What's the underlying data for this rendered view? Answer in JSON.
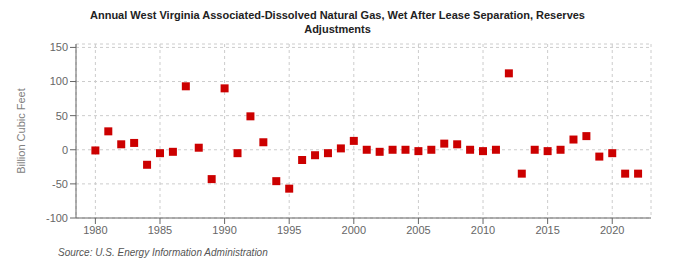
{
  "chart_data": {
    "type": "scatter",
    "title": "Annual West Virginia Associated-Dissolved Natural Gas, Wet After Lease Separation, Reserves\nAdjustments",
    "ylabel": "Billion Cubic Feet",
    "annotations": [
      "Source: U.S. Energy Information Administration"
    ],
    "x": [
      1980,
      1981,
      1982,
      1983,
      1984,
      1985,
      1986,
      1987,
      1988,
      1989,
      1990,
      1991,
      1992,
      1993,
      1994,
      1995,
      1996,
      1997,
      1998,
      1999,
      2000,
      2001,
      2002,
      2003,
      2004,
      2005,
      2006,
      2007,
      2008,
      2009,
      2010,
      2011,
      2012,
      2013,
      2014,
      2015,
      2016,
      2017,
      2018,
      2019,
      2020,
      2021,
      2022
    ],
    "values": [
      -1,
      27,
      8,
      10,
      -22,
      -5,
      -3,
      93,
      3,
      -43,
      90,
      -5,
      49,
      11,
      -46,
      -57,
      -15,
      -8,
      -5,
      2,
      13,
      0,
      -3,
      0,
      0,
      -2,
      0,
      9,
      8,
      0,
      -2,
      0,
      112,
      -35,
      0,
      -2,
      0,
      15,
      20,
      -10,
      -5,
      -35,
      -35
    ],
    "color": "#cc0000",
    "marker": "square",
    "xlim": [
      1978.5,
      2023
    ],
    "ylim": [
      -100,
      155
    ],
    "xticks": [
      1980,
      1985,
      1990,
      1995,
      2000,
      2005,
      2010,
      2015,
      2020
    ],
    "yticks": [
      -100,
      -50,
      0,
      50,
      100,
      150
    ],
    "grid": true
  }
}
